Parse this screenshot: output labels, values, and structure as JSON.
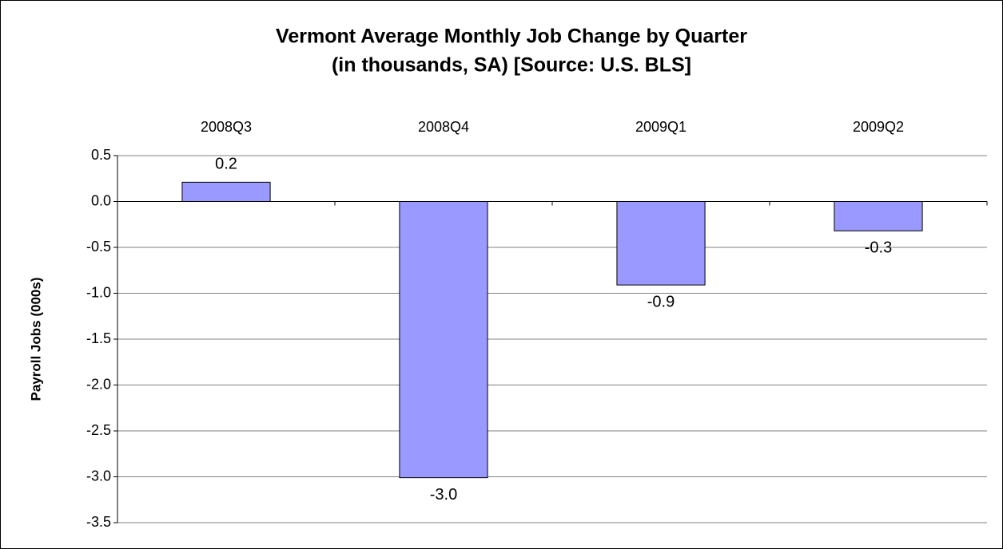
{
  "chart_data": {
    "type": "bar",
    "title": [
      "Vermont Average Monthly Job Change by Quarter",
      "(in thousands, SA) [Source: U.S. BLS]"
    ],
    "y_label": "Payroll Jobs (000s)",
    "categories": [
      "2008Q3",
      "2008Q4",
      "2009Q1",
      "2009Q2"
    ],
    "values": [
      0.21,
      -3.01,
      -0.91,
      -0.32
    ],
    "value_labels": [
      "0.2",
      "-3.0",
      "-0.9",
      "-0.3"
    ],
    "color": "#9999ff",
    "ylim": [
      -3.5,
      0.5
    ],
    "yticks": [
      0.5,
      {
        "value": 0,
        "label": "0.0"
      },
      -0.5,
      {
        "value": -1,
        "label": "-1.0"
      },
      -1.5,
      {
        "value": -2,
        "label": "-2.0"
      },
      -2.5,
      {
        "value": -3,
        "label": "-3.0"
      },
      -3.5
    ],
    "grid": true
  }
}
